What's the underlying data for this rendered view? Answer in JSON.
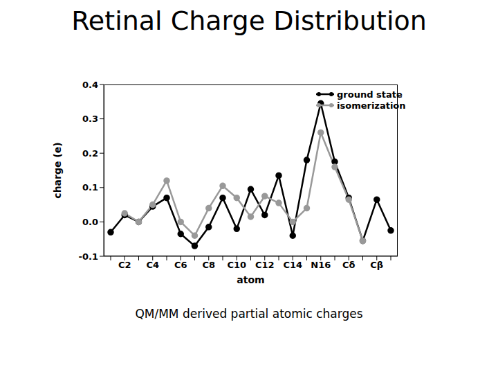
{
  "chart_data": {
    "type": "line",
    "title": "Retinal Charge Distribution",
    "caption": "QM/MM derived partial atomic charges",
    "x_label": "atom",
    "y_label": "charge (e)",
    "categories": [
      null,
      "C2",
      null,
      "C4",
      null,
      "C6",
      null,
      "C8",
      null,
      "C10",
      null,
      "C12",
      null,
      "C14",
      null,
      "N16",
      null,
      "Cδ",
      null,
      "Cβ",
      null
    ],
    "series": [
      {
        "name": "ground state",
        "color": "#000000",
        "marker": "circle",
        "values": [
          -0.03,
          0.02,
          0.0,
          0.045,
          0.07,
          -0.035,
          -0.07,
          -0.015,
          0.07,
          -0.02,
          0.095,
          0.02,
          0.135,
          -0.04,
          0.18,
          0.345,
          0.175,
          0.07,
          -0.055,
          0.065,
          -0.025
        ]
      },
      {
        "name": "isomerization",
        "color": "#999999",
        "marker": "circle",
        "values": [
          null,
          0.025,
          0.0,
          0.05,
          0.12,
          0.0,
          -0.04,
          0.04,
          0.105,
          0.07,
          0.015,
          0.075,
          0.055,
          0.0,
          0.04,
          0.26,
          0.16,
          0.065,
          -0.055,
          null,
          null
        ]
      }
    ],
    "ylim": [
      -0.1,
      0.4
    ],
    "yticks": [
      -0.1,
      {
        "value": 0,
        "label": "0.0"
      },
      0.1,
      0.2,
      0.3,
      0.4
    ],
    "legend": "upper right"
  }
}
